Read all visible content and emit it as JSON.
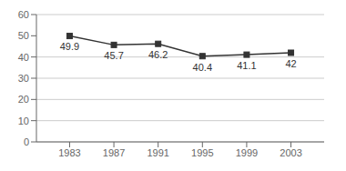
{
  "chart_data": {
    "type": "line",
    "x": [
      1983,
      1987,
      1991,
      1995,
      1999,
      2003
    ],
    "values": [
      49.9,
      45.7,
      46.2,
      40.4,
      41.1,
      42
    ],
    "color": "#333333",
    "marker": "square",
    "xlim": [
      1980,
      2006
    ],
    "xticks": [
      1983,
      1987,
      1991,
      1995,
      1999,
      2003
    ],
    "ylim": [
      0,
      60
    ],
    "yticks": [
      0,
      10,
      20,
      30,
      40,
      50,
      60
    ],
    "grid": true,
    "data_labels": true
  }
}
